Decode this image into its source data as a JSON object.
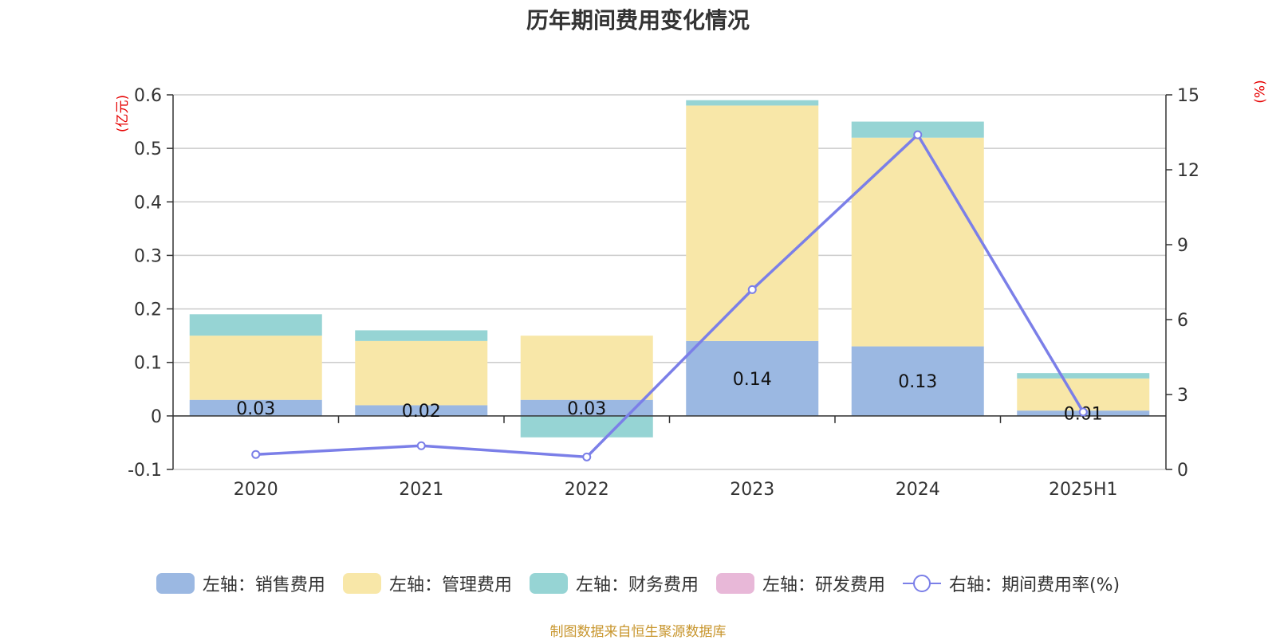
{
  "chart_data": {
    "type": "bar",
    "title": "历年期间费用变化情况",
    "categories": [
      "2020",
      "2021",
      "2022",
      "2023",
      "2024",
      "2025H1"
    ],
    "left_axis": {
      "unit": "(亿元)",
      "ylim": [
        -0.1,
        0.6
      ],
      "ticks": [
        "-0.1",
        "0",
        "0.1",
        "0.2",
        "0.3",
        "0.4",
        "0.5",
        "0.6"
      ]
    },
    "right_axis": {
      "unit": "(%)",
      "ylim": [
        0,
        15
      ],
      "ticks": [
        "0",
        "3",
        "6",
        "9",
        "12",
        "15"
      ]
    },
    "stacked": true,
    "series": [
      {
        "name": "左轴：销售费用",
        "axis": "left",
        "color": "#9bb8e2",
        "values": [
          0.03,
          0.02,
          0.03,
          0.14,
          0.13,
          0.01
        ],
        "labels": [
          "0.03",
          "0.02",
          "0.03",
          "0.14",
          "0.13",
          "0.01"
        ]
      },
      {
        "name": "左轴：管理费用",
        "axis": "left",
        "color": "#f8e7a8",
        "values": [
          0.12,
          0.12,
          0.12,
          0.44,
          0.39,
          0.06
        ]
      },
      {
        "name": "左轴：财务费用",
        "axis": "left",
        "color": "#96d4d4",
        "values": [
          0.04,
          0.02,
          -0.04,
          0.01,
          0.03,
          0.01
        ]
      },
      {
        "name": "左轴：研发费用",
        "axis": "left",
        "color": "#e8b8d8",
        "values": [
          0,
          0,
          0,
          0,
          0,
          0
        ]
      },
      {
        "name": "右轴：期间费用率(%)",
        "axis": "right",
        "type": "line",
        "color": "#7b7fe8",
        "values": [
          0.6,
          0.95,
          0.5,
          7.2,
          13.4,
          2.3
        ]
      }
    ],
    "grid": true,
    "legend_position": "bottom"
  },
  "source_note": "制图数据来自恒生聚源数据库"
}
